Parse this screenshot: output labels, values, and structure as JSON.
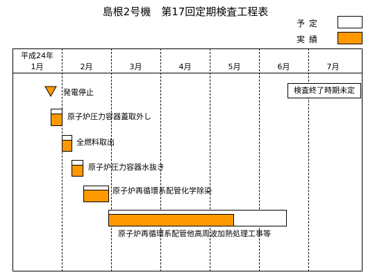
{
  "title": "島根2号機　第17回定期検査工程表",
  "legend": {
    "plan_label": "予定",
    "actual_label": "実績",
    "plan_color": "#ffffff",
    "actual_color": "#ff9900"
  },
  "timeline": {
    "year_label": "平成24年",
    "months": [
      "1月",
      "2月",
      "3月",
      "4月",
      "5月",
      "6月",
      "7月"
    ]
  },
  "note": "検査終了時期未定",
  "tasks": [
    {
      "label": "発電停止",
      "kind": "milestone-triangle"
    },
    {
      "label": "原子炉圧力容器蓋取外し",
      "kind": "actual-completed"
    },
    {
      "label": "全燃料取出",
      "kind": "actual-completed"
    },
    {
      "label": "原子炉圧力容器水抜き",
      "kind": "actual-completed"
    },
    {
      "label": "原子炉再循環系配管化学除染",
      "kind": "actual-completed"
    },
    {
      "label": "原子炉再循環系配管他高周波加熱処理工事等",
      "kind": "in-progress"
    }
  ]
}
